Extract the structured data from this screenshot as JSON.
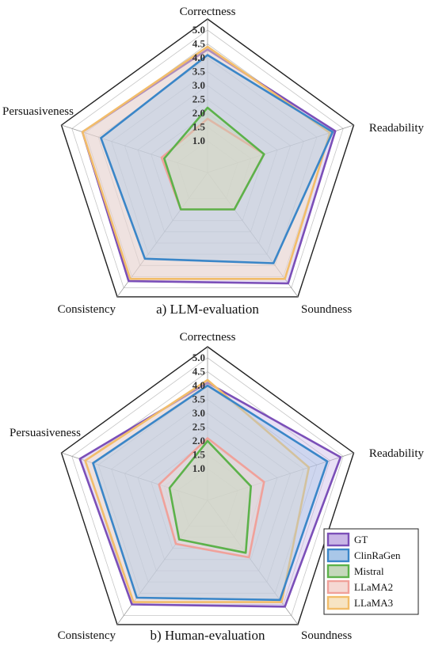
{
  "chart_data": [
    {
      "type": "radar",
      "caption": "a) LLM-evaluation",
      "axes": [
        "Correctness",
        "Readability",
        "Soundness",
        "Consistency",
        "Persuasiveness"
      ],
      "rlim": [
        1.0,
        5.0
      ],
      "ticks": [
        "1.0",
        "1.5",
        "2.0",
        "2.5",
        "3.0",
        "3.5",
        "4.0",
        "4.5",
        "5.0"
      ],
      "grid": true,
      "series": [
        {
          "name": "GT",
          "values": [
            4.3,
            4.7,
            4.8,
            4.7,
            4.6
          ]
        },
        {
          "name": "ClinRaGen",
          "values": [
            4.1,
            4.6,
            3.9,
            3.7,
            3.9
          ]
        },
        {
          "name": "Mistral",
          "values": [
            2.2,
            2.0,
            1.5,
            1.5,
            1.5
          ]
        },
        {
          "name": "LLaMA2",
          "values": [
            1.8,
            2.0,
            1.5,
            1.5,
            1.6
          ]
        },
        {
          "name": "LLaMA3",
          "values": [
            4.4,
            4.5,
            4.6,
            4.6,
            4.6
          ]
        }
      ]
    },
    {
      "type": "radar",
      "caption": "b) Human-evaluation",
      "axes": [
        "Correctness",
        "Readability",
        "Soundness",
        "Consistency",
        "Persuasiveness"
      ],
      "rlim": [
        1.0,
        5.0
      ],
      "ticks": [
        "1.0",
        "1.5",
        "2.0",
        "2.5",
        "3.0",
        "3.5",
        "4.0",
        "4.5",
        "5.0"
      ],
      "grid": true,
      "legend": "bottom-right",
      "series": [
        {
          "name": "GT",
          "values": [
            4.1,
            4.9,
            4.6,
            4.5,
            4.7
          ]
        },
        {
          "name": "ClinRaGen",
          "values": [
            4.0,
            4.4,
            4.3,
            4.2,
            4.2
          ]
        },
        {
          "name": "Mistral",
          "values": [
            2.0,
            1.5,
            2.2,
            1.6,
            1.3
          ]
        },
        {
          "name": "LLaMA2",
          "values": [
            2.1,
            2.0,
            2.4,
            1.8,
            1.7
          ]
        },
        {
          "name": "LLaMA3",
          "values": [
            4.2,
            3.7,
            4.4,
            4.4,
            4.5
          ]
        }
      ]
    }
  ],
  "legend": {
    "items": [
      {
        "label": "GT",
        "stroke": "#7b4fb8",
        "fill": "#c9b6e6"
      },
      {
        "label": "ClinRaGen",
        "stroke": "#3a86c8",
        "fill": "#a9c7e8"
      },
      {
        "label": "Mistral",
        "stroke": "#5cb24a",
        "fill": "#c5d8bb"
      },
      {
        "label": "LLaMA2",
        "stroke": "#f0a19a",
        "fill": "#f5d8d3"
      },
      {
        "label": "LLaMA3",
        "stroke": "#f2bd6a",
        "fill": "#f7e4c3"
      }
    ]
  }
}
